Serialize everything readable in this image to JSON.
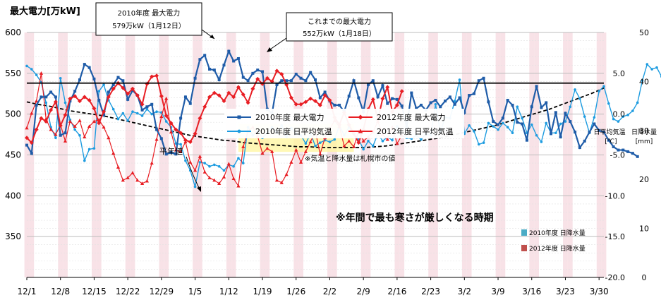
{
  "chart_data": {
    "type": "line",
    "title": "最大電力[万kW]",
    "x_ticks": [
      "12/1",
      "12/8",
      "12/15",
      "12/22",
      "12/29",
      "1/5",
      "1/12",
      "1/19",
      "1/26",
      "2/2",
      "2/9",
      "2/16",
      "2/23",
      "3/2",
      "3/9",
      "3/16",
      "3/23",
      "3/30"
    ],
    "power_axis": {
      "ylim": [
        300,
        600
      ],
      "ticks": [
        "350",
        "400",
        "450",
        "500",
        "550",
        "600"
      ]
    },
    "temp_axis": {
      "label": "日平均気温",
      "unit": "[℃]",
      "ylim": [
        -20,
        10
      ],
      "ticks": [
        "5.0",
        "0.0",
        "-5.0",
        "-10.0",
        "-15.0",
        "-20.0"
      ]
    },
    "rain_axis": {
      "label": "日降水量",
      "unit": "[mm]",
      "ylim": [
        0,
        50
      ],
      "ticks": [
        "50",
        "40",
        "30",
        "20",
        "10",
        "0"
      ]
    },
    "reference_line": {
      "value": 538
    },
    "series": [
      {
        "name": "2010年度 最大電力",
        "color": "#1f5ca8",
        "axis": "power",
        "values": [
          462,
          452,
          511,
          521,
          521,
          527,
          521,
          474,
          477,
          516,
          528,
          542,
          561,
          557,
          543,
          517,
          499,
          527,
          536,
          545,
          541,
          518,
          529,
          523,
          505,
          509,
          512,
          481,
          470,
          451,
          453,
          451,
          495,
          521,
          513,
          544,
          567,
          572,
          555,
          554,
          542,
          560,
          577,
          565,
          568,
          545,
          541,
          550,
          554,
          552,
          506,
          501,
          536,
          541,
          541,
          541,
          549,
          544,
          541,
          551,
          542,
          520,
          527,
          516,
          511,
          511,
          503,
          522,
          541,
          520,
          503,
          536,
          541,
          521,
          535,
          513,
          519,
          518,
          510,
          484,
          526,
          507,
          511,
          505,
          514,
          517,
          509,
          516,
          521,
          512,
          520,
          502,
          523,
          525,
          541,
          544,
          515,
          491,
          487,
          495,
          517,
          511,
          490,
          488,
          468,
          509,
          534,
          508,
          514,
          476,
          502,
          472,
          501,
          491,
          478,
          459,
          467,
          478,
          488,
          480,
          478,
          468,
          460,
          456,
          456,
          454,
          452,
          448
        ]
      },
      {
        "name": "2012年度 最大電力",
        "color": "#e81e24",
        "axis": "power",
        "values": [
          471,
          465,
          481,
          495,
          491,
          505,
          515,
          486,
          499,
          519,
          522,
          516,
          521,
          517,
          507,
          489,
          503,
          521,
          531,
          538,
          532,
          525,
          531,
          523,
          512,
          537,
          546,
          547,
          522,
          498,
          489,
          481,
          477,
          468,
          466,
          476,
          495,
          509,
          521,
          526,
          523,
          516,
          526,
          521,
          533,
          524,
          514,
          531,
          543,
          537,
          544,
          540,
          553,
          549,
          536,
          520,
          512,
          512,
          515,
          519,
          516,
          511,
          523,
          517,
          496,
          487,
          502,
          487,
          476,
          465,
          481,
          506,
          518,
          493,
          519,
          533,
          503,
          511,
          528
        ]
      },
      {
        "name": "2010年度 日平均気温",
        "color": "#1e9ce0",
        "axis": "temp",
        "values": [
          5.9,
          5.5,
          4.8,
          3.9,
          1.4,
          -1.6,
          -2.9,
          4.4,
          1.4,
          -0.7,
          -1.9,
          -2.6,
          -5.7,
          -4.3,
          -4.2,
          2.8,
          3.6,
          1.7,
          0.6,
          -0.6,
          0.1,
          -0.8,
          0.3,
          0.1,
          -0.2,
          0.6,
          0.0,
          0.3,
          0.2,
          -0.9,
          -1.6,
          -3.6,
          -3.7,
          -5.7,
          -6.9,
          -8.9,
          -5.9,
          -6.0,
          -6.4,
          -6.2,
          -6.4,
          -6.9,
          -6.2,
          -6.4,
          -5.4,
          -6.0,
          -1.6,
          -2.6,
          -2.1,
          -2.9,
          -2.3,
          -1.6,
          -2.3,
          -1.4,
          -2.8,
          -1.7,
          -2.4,
          -2.6,
          -3.6,
          -2.4,
          -3.9,
          -3.5,
          -3.2,
          -3.4,
          -3.1,
          -1.4,
          -2.6,
          -1.6,
          -2.4,
          -3.1,
          -4.3,
          -3.3,
          -3.9,
          -2.4,
          -3.3,
          -2.8,
          -3.2,
          -1.5,
          -2.6,
          -2.9,
          -3.0,
          -2.6,
          -3.1,
          -2.4,
          -2.6,
          1.2,
          -2.2,
          -0.4,
          -0.5,
          1.6,
          4.2,
          -2.4,
          -1.4,
          -2.1,
          -3.7,
          -3.5,
          -1.1,
          -1.5,
          -1.9,
          -1.1,
          -1.6,
          -2.3,
          0.9,
          -0.5,
          -2.3,
          -1.3,
          -2.6,
          -3.4,
          -1.1,
          -2.3,
          -2.3,
          -1.2,
          -0.9,
          0.9,
          3.0,
          1.9,
          -0.3,
          -2.3,
          -0.4,
          2.8,
          3.4,
          1.3,
          -0.6,
          -0.9,
          -0.3,
          -0.1,
          0.4,
          1.4,
          4.1,
          6.1,
          5.5,
          5.7,
          4.6,
          1.4,
          0.4
        ]
      },
      {
        "name": "2012年度 日平均気温",
        "color": "#e81e24",
        "axis": "temp",
        "values": [
          -1.7,
          0.1,
          1.6,
          5.0,
          -0.6,
          -1.9,
          -2.5,
          -1.3,
          -3.3,
          -0.9,
          -1.5,
          -0.8,
          -2.8,
          -1.5,
          -0.9,
          -0.7,
          -1.6,
          -2.9,
          -4.8,
          -6.5,
          -8.1,
          -7.8,
          -7.2,
          -8.1,
          -8.5,
          -8.2,
          -6.0,
          -3.1,
          -0.3,
          1.9,
          -2.2,
          -4.4,
          -4.6,
          -3.4,
          -5.9,
          -6.9,
          -5.2,
          -7.1,
          -7.8,
          -8.1,
          -8.5,
          -7.7,
          -6.1,
          -7.9,
          -8.8,
          -4.0,
          -2.1,
          -1.6,
          -2.7,
          -4.8,
          -4.2,
          -4.6,
          -8.1,
          -8.4,
          -7.4,
          -5.9,
          -4.4,
          -5.9,
          -4.6,
          -3.4,
          -2.1,
          -4.9,
          -2.9,
          -1.8,
          -0.8,
          -1.5,
          -3.9,
          -3.3,
          -4.0,
          -2.1,
          -3.3,
          -2.8,
          -2.2,
          -0.9,
          -2.5,
          -3.1,
          -1.6,
          -3.6,
          -2.6
        ]
      },
      {
        "name": "2010年度 日降水量",
        "color": "#4bacc6",
        "axis": "rain",
        "values": [
          0,
          0,
          0,
          0,
          0,
          0,
          0,
          0,
          0,
          0,
          0,
          0,
          0,
          0,
          0,
          0,
          0,
          0,
          0,
          0,
          0,
          0,
          0,
          0,
          0,
          0,
          0,
          0,
          0,
          0,
          0,
          0,
          0,
          0,
          0,
          0,
          0,
          0,
          0,
          0,
          0,
          0,
          0,
          0,
          0,
          0,
          0,
          0,
          0,
          0,
          0,
          0,
          0,
          0,
          0,
          0,
          0,
          0,
          0,
          0,
          0,
          0,
          0,
          0,
          0,
          0,
          0,
          0,
          0,
          0,
          0,
          0,
          0,
          0,
          0,
          0,
          0,
          0,
          0,
          0,
          0,
          0,
          0,
          0,
          0,
          0,
          0,
          0,
          0,
          0,
          0,
          0,
          0,
          0,
          0,
          0,
          0,
          0,
          0,
          0,
          0,
          0,
          0,
          0,
          0,
          0,
          0,
          0,
          0,
          0,
          0,
          0,
          0,
          0,
          0,
          0,
          0,
          0,
          0,
          0,
          0,
          0,
          0,
          0,
          0,
          0,
          0,
          0,
          0,
          0,
          0,
          0,
          0,
          0,
          0,
          0,
          0,
          0,
          0,
          0,
          0,
          0,
          0,
          0,
          0,
          0,
          0,
          0,
          0,
          0,
          0,
          0,
          0,
          0,
          0,
          0
        ]
      },
      {
        "name": "2012年度 日降水量",
        "color": "#c0504d",
        "axis": "rain",
        "values": [
          0,
          0,
          0,
          0,
          0,
          0,
          0,
          0,
          0,
          0,
          0,
          0,
          0,
          0,
          0,
          0,
          0,
          0,
          0,
          0,
          0,
          0,
          0,
          0,
          0,
          0,
          0,
          0,
          0,
          0,
          0,
          0,
          0,
          0,
          0,
          0,
          0,
          0,
          0,
          0,
          0,
          0,
          0,
          0,
          0,
          0,
          0,
          0,
          0,
          0,
          0,
          0,
          0,
          0,
          0,
          0,
          0,
          0,
          0,
          0,
          0,
          0,
          0,
          0,
          0,
          0,
          0,
          0,
          0,
          0,
          0,
          0,
          0,
          0,
          0,
          0,
          0,
          0,
          0,
          0,
          0,
          0,
          0,
          0,
          0,
          0,
          0,
          0,
          0,
          0,
          0,
          0,
          0,
          0,
          0,
          0,
          0,
          0,
          0,
          0,
          0,
          0,
          0,
          0,
          0,
          0,
          0,
          0,
          0,
          0,
          0,
          0,
          0,
          0,
          0,
          0,
          0,
          0,
          0,
          0,
          0,
          0,
          0,
          0,
          0,
          0,
          0,
          0,
          0,
          0,
          0,
          0,
          0,
          0,
          0,
          0,
          0,
          0,
          0,
          0,
          0,
          0,
          0,
          0,
          0,
          0,
          0,
          0,
          0,
          0,
          0,
          0,
          0,
          0,
          0,
          0
        ]
      },
      {
        "name": "平年値",
        "color": "#000000",
        "axis": "temp",
        "values": [
          1.5,
          1.2,
          1.0,
          0.7,
          0.4,
          0.2,
          0.0,
          -0.2,
          -0.5,
          -0.8,
          -1.1,
          -1.4,
          -1.7,
          -2.0,
          -2.3,
          -2.6,
          -2.8,
          -3.0,
          -3.2,
          -3.3,
          -3.5,
          -3.6,
          -3.7,
          -3.8,
          -3.9,
          -4.0,
          -4.0,
          -4.1,
          -4.1,
          -4.1,
          -4.1,
          -4.1,
          -4.0,
          -3.9,
          -3.7,
          -3.5,
          -3.3,
          -3.1,
          -2.9,
          -2.6,
          -2.3,
          -2.0,
          -1.7,
          -1.4,
          -1.0,
          -0.6,
          -0.2,
          0.2,
          0.6,
          1.1,
          1.6,
          2.1,
          2.6,
          3.2
        ]
      }
    ],
    "legend": [
      {
        "label": "2010年度 最大電力",
        "color": "#1f5ca8"
      },
      {
        "label": "2012年度 最大電力",
        "color": "#e81e24"
      },
      {
        "label": "2010年度 日平均気温",
        "color": "#1e9ce0"
      },
      {
        "label": "2012年度 日平均気温",
        "color": "#e81e24"
      },
      {
        "label": "2010年度 日降水量",
        "color": "#4bacc6"
      },
      {
        "label": "2012年度 日降水量",
        "color": "#c0504d"
      }
    ],
    "annotations": {
      "max2010": {
        "line1": "2010年度 最大電力",
        "line2": "579万kW（1月12日）"
      },
      "record": {
        "line1": "これまでの最大電力",
        "line2": "552万kW（1月18日）"
      },
      "normal": "平年値",
      "note": "※気温と降水量は札幌市の値",
      "cold": "※年間で最も寒さが厳しくなる時期"
    }
  }
}
